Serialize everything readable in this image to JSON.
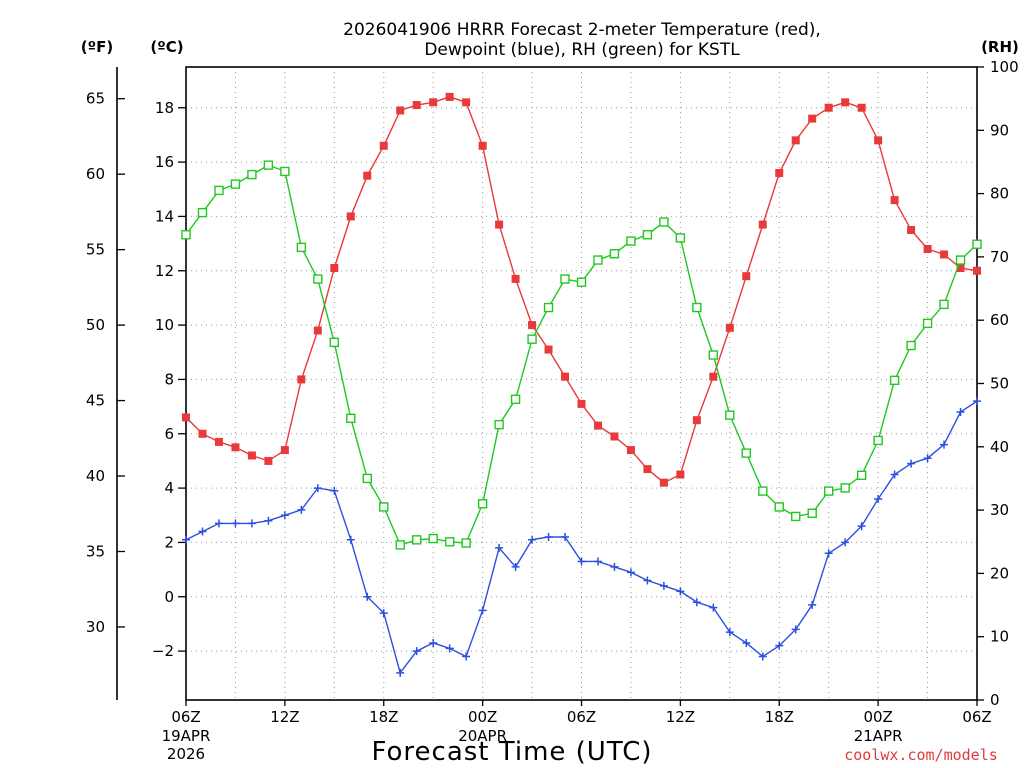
{
  "chart_data": {
    "type": "line",
    "title_line1": "2026041906 HRRR Forecast 2-meter Temperature (red),",
    "title_line2": "Dewpoint (blue), RH (green) for KSTL",
    "xlabel": "Forecast Time (UTC)",
    "credit": "coolwx.com/models",
    "unit_left_f": "(ºF)",
    "unit_left_c": "(ºC)",
    "unit_right": "(RH)",
    "x_hours_range": [
      0,
      48
    ],
    "celsius_range": [
      -3.8,
      19.5
    ],
    "rh_range": [
      0,
      100
    ],
    "celsius_ticks": [
      "−2",
      "0",
      "2",
      "4",
      "6",
      "8",
      "10",
      "12",
      "14",
      "16",
      "18"
    ],
    "celsius_tick_values": [
      -2,
      0,
      2,
      4,
      6,
      8,
      10,
      12,
      14,
      16,
      18
    ],
    "fahrenheit_ticks": [
      "30",
      "35",
      "40",
      "45",
      "50",
      "55",
      "60",
      "65"
    ],
    "fahrenheit_tick_values": [
      30,
      35,
      40,
      45,
      50,
      55,
      60,
      65
    ],
    "rh_ticks": [
      "0",
      "10",
      "20",
      "30",
      "40",
      "50",
      "60",
      "70",
      "80",
      "90",
      "100"
    ],
    "rh_tick_values": [
      0,
      10,
      20,
      30,
      40,
      50,
      60,
      70,
      80,
      90,
      100
    ],
    "x_ticks": [
      {
        "hour": 0,
        "label": "06Z",
        "sub1": "19APR",
        "sub2": "2026"
      },
      {
        "hour": 6,
        "label": "12Z",
        "sub1": "",
        "sub2": ""
      },
      {
        "hour": 12,
        "label": "18Z",
        "sub1": "",
        "sub2": ""
      },
      {
        "hour": 18,
        "label": "00Z",
        "sub1": "20APR",
        "sub2": ""
      },
      {
        "hour": 24,
        "label": "06Z",
        "sub1": "",
        "sub2": ""
      },
      {
        "hour": 30,
        "label": "12Z",
        "sub1": "",
        "sub2": ""
      },
      {
        "hour": 36,
        "label": "18Z",
        "sub1": "",
        "sub2": ""
      },
      {
        "hour": 42,
        "label": "00Z",
        "sub1": "21APR",
        "sub2": ""
      },
      {
        "hour": 48,
        "label": "06Z",
        "sub1": "",
        "sub2": ""
      }
    ],
    "series": [
      {
        "name": "Temperature",
        "unit": "°C",
        "axis": "celsius",
        "color": "#e8393b",
        "marker": "filled-square",
        "values": [
          6.6,
          6.0,
          5.7,
          5.5,
          5.2,
          5.0,
          5.4,
          8.0,
          9.8,
          12.1,
          14.0,
          15.5,
          16.6,
          17.9,
          18.1,
          18.2,
          18.4,
          18.2,
          16.6,
          13.7,
          11.7,
          10.0,
          9.1,
          8.1,
          7.1,
          6.3,
          5.9,
          5.4,
          4.7,
          4.2,
          4.5,
          6.5,
          8.1,
          9.9,
          11.8,
          13.7,
          15.6,
          16.8,
          17.6,
          18.0,
          18.2,
          18.0,
          16.8,
          14.6,
          13.5,
          12.8,
          12.6,
          12.1,
          12.0
        ]
      },
      {
        "name": "Dewpoint",
        "unit": "°C",
        "axis": "celsius",
        "color": "#2d4fe0",
        "marker": "plus",
        "values": [
          2.1,
          2.4,
          2.7,
          2.7,
          2.7,
          2.8,
          3.0,
          3.2,
          4.0,
          3.9,
          2.1,
          0.0,
          -0.6,
          -2.8,
          -2.0,
          -1.7,
          -1.9,
          -2.2,
          -0.5,
          1.8,
          1.1,
          2.1,
          2.2,
          2.2,
          1.3,
          1.3,
          1.1,
          0.9,
          0.6,
          0.4,
          0.2,
          -0.2,
          -0.4,
          -1.3,
          -1.7,
          -2.2,
          -1.8,
          -1.2,
          -0.3,
          1.6,
          2.0,
          2.6,
          3.6,
          4.5,
          4.9,
          5.1,
          5.6,
          6.8,
          7.2
        ]
      },
      {
        "name": "Relative Humidity",
        "unit": "%",
        "axis": "rh",
        "color": "#1fc91f",
        "marker": "open-square",
        "values": [
          73.5,
          77.0,
          80.5,
          81.5,
          83.0,
          84.5,
          83.5,
          71.5,
          66.5,
          56.5,
          44.5,
          35.0,
          30.5,
          24.5,
          25.3,
          25.5,
          25.0,
          24.8,
          31.0,
          43.5,
          47.5,
          57.0,
          62.0,
          66.5,
          66.0,
          69.5,
          70.5,
          72.5,
          73.5,
          75.5,
          73.0,
          62.0,
          54.5,
          45.0,
          39.0,
          33.0,
          30.5,
          29.0,
          29.5,
          33.0,
          33.5,
          35.5,
          41.0,
          50.5,
          56.0,
          59.5,
          62.5,
          69.5,
          72.0
        ]
      }
    ]
  }
}
